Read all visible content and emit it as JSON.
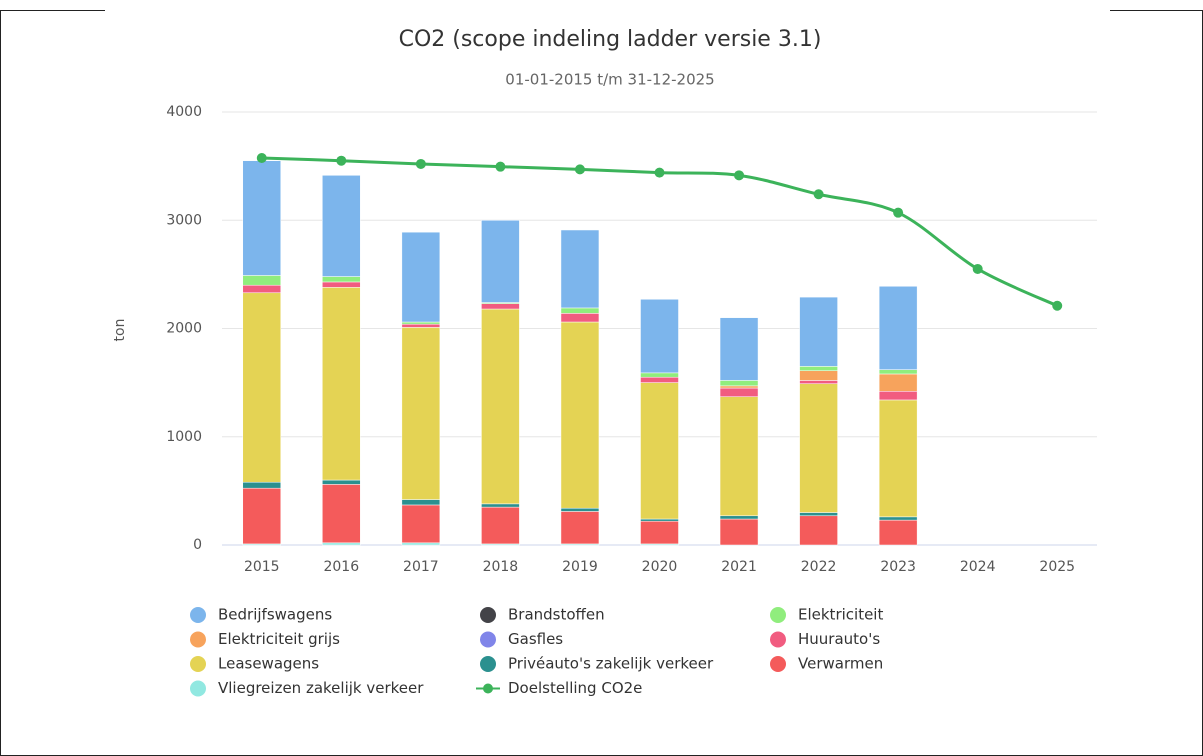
{
  "chart_data": {
    "type": "bar",
    "stacked": true,
    "title": "CO2 (scope indeling ladder versie 3.1)",
    "subtitle": "01-01-2015 t/m 31-12-2025",
    "y_label": "ton",
    "categories": [
      "2015",
      "2016",
      "2017",
      "2018",
      "2019",
      "2020",
      "2021",
      "2022",
      "2023",
      "2024",
      "2025"
    ],
    "ylim": [
      0,
      4000
    ],
    "yticks": [
      0,
      1000,
      2000,
      3000,
      4000
    ],
    "grid": true,
    "legend": "bottom",
    "series": [
      {
        "name": "Bedrijfswagens",
        "color": "#7cb5ec",
        "values": [
          1060,
          935,
          830,
          760,
          720,
          680,
          580,
          640,
          770,
          null,
          null
        ]
      },
      {
        "name": "Brandstoffen",
        "color": "#434348",
        "values": [
          0,
          0,
          0,
          0,
          0,
          0,
          0,
          0,
          0,
          null,
          null
        ]
      },
      {
        "name": "Elektriciteit",
        "color": "#90ed7d",
        "values": [
          90,
          50,
          20,
          10,
          50,
          40,
          50,
          40,
          40,
          null,
          null
        ]
      },
      {
        "name": "Elektriciteit grijs",
        "color": "#f7a35c",
        "values": [
          0,
          0,
          0,
          0,
          0,
          0,
          20,
          90,
          160,
          null,
          null
        ]
      },
      {
        "name": "Gasfles",
        "color": "#8085e9",
        "values": [
          0,
          0,
          0,
          0,
          0,
          0,
          0,
          0,
          0,
          null,
          null
        ]
      },
      {
        "name": "Huurauto's",
        "color": "#f15c80",
        "values": [
          70,
          50,
          30,
          50,
          80,
          50,
          80,
          30,
          80,
          null,
          null
        ]
      },
      {
        "name": "Leasewagens",
        "color": "#e4d354",
        "values": [
          1750,
          1780,
          1590,
          1800,
          1720,
          1260,
          1100,
          1190,
          1080,
          null,
          null
        ]
      },
      {
        "name": "Privéauto's zakelijk verkeer",
        "color": "#2b908f",
        "values": [
          55,
          40,
          50,
          30,
          30,
          20,
          30,
          30,
          30,
          null,
          null
        ]
      },
      {
        "name": "Verwarmen",
        "color": "#f45b5b",
        "values": [
          515,
          540,
          350,
          340,
          300,
          210,
          240,
          270,
          230,
          null,
          null
        ]
      },
      {
        "name": "Vliegreizen zakelijk verkeer",
        "color": "#91e8e1",
        "values": [
          10,
          20,
          20,
          10,
          10,
          10,
          0,
          0,
          0,
          null,
          null
        ]
      },
      {
        "name": "Doelstelling CO2e",
        "type": "line",
        "color": "#3cb35a",
        "values": [
          3575,
          3550,
          3520,
          3495,
          3470,
          3440,
          3415,
          3240,
          3070,
          2550,
          2210
        ]
      }
    ]
  }
}
